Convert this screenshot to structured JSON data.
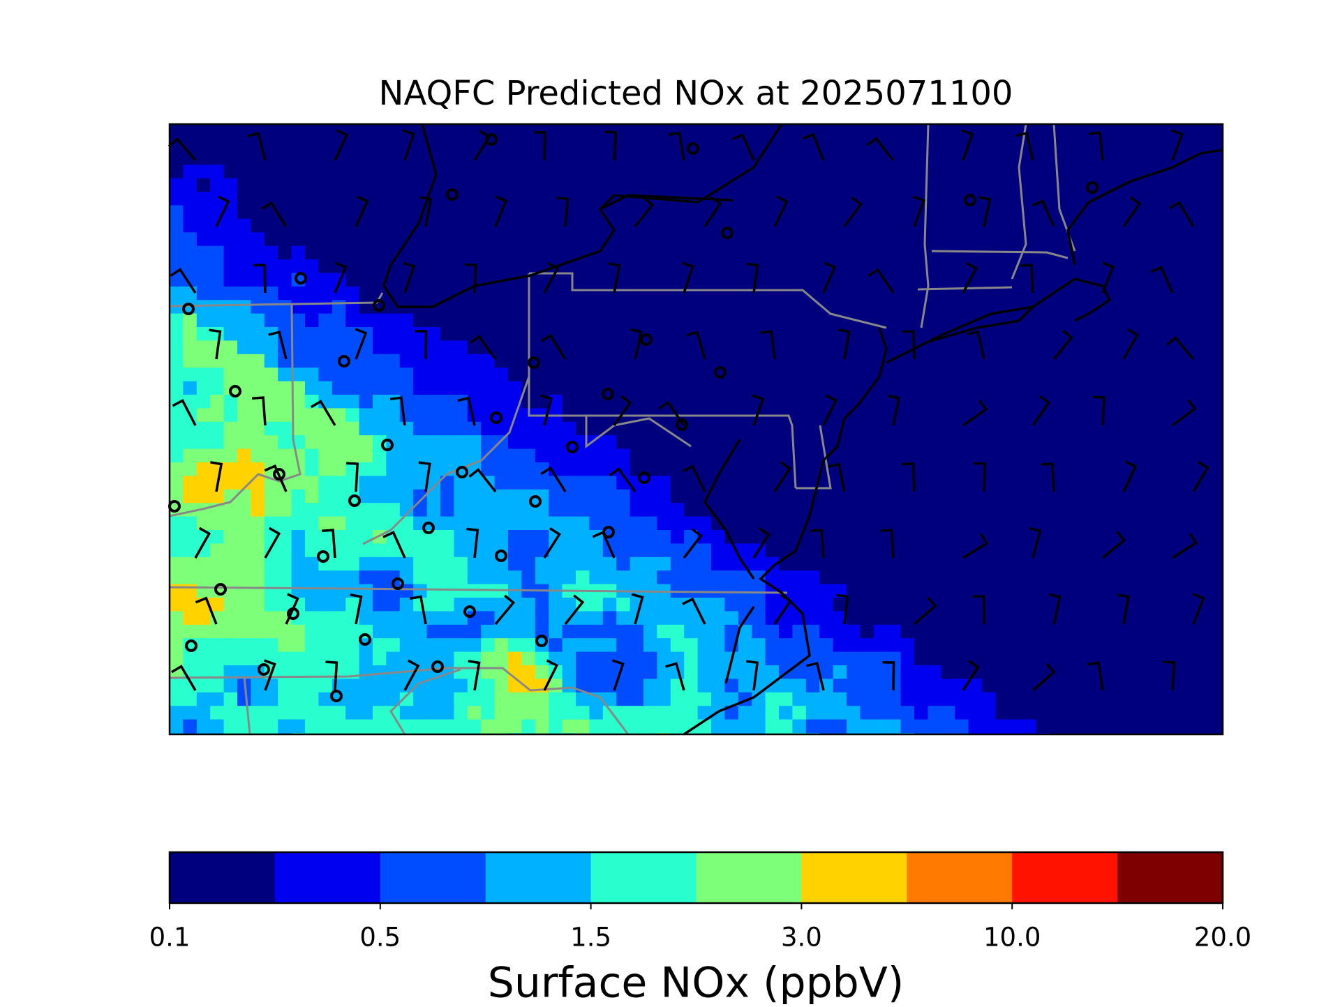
{
  "title": "NAQFC Predicted NOx at 2025071100",
  "colorbar": {
    "label": "Surface NOx (ppbV)",
    "colors": [
      "#00007f",
      "#0000f1",
      "#004dff",
      "#00b1ff",
      "#29ffce",
      "#7dff7a",
      "#ffd200",
      "#ff7a00",
      "#ff1300",
      "#7f0000"
    ],
    "ticks": [
      0.1,
      0.5,
      1.5,
      {
        "value": 3,
        "label": "3.0"
      },
      {
        "value": 10,
        "label": "10.0"
      },
      {
        "value": 20,
        "label": "20.0"
      }
    ]
  }
}
